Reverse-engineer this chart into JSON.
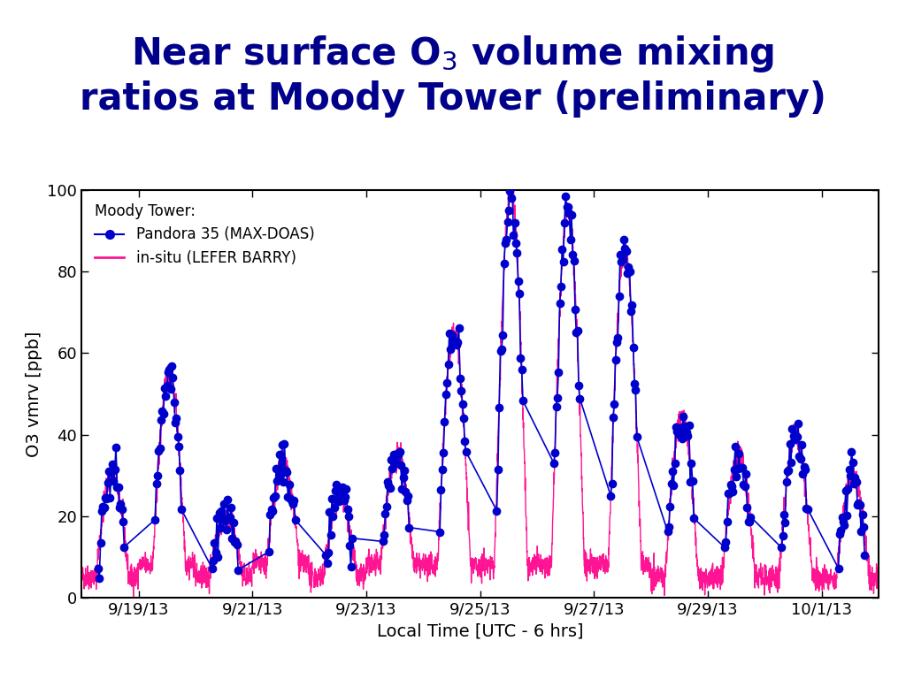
{
  "xlabel": "Local Time [UTC - 6 hrs]",
  "ylabel": "O3 vmrv [ppb]",
  "ylim": [
    0,
    100
  ],
  "yticks": [
    0,
    20,
    40,
    60,
    80,
    100
  ],
  "xtick_labels": [
    "9/19/13",
    "9/21/13",
    "9/23/13",
    "9/25/13",
    "9/27/13",
    "9/29/13",
    "10/1/13"
  ],
  "xtick_positions": [
    1,
    3,
    5,
    7,
    9,
    11,
    13
  ],
  "xlim": [
    0,
    14
  ],
  "legend_title": "Moody Tower:",
  "legend_pandora": "Pandora 35 (MAX-DOAS)",
  "legend_insitu": "in-situ (LEFER BARRY)",
  "blue_color": "#0000CD",
  "pink_color": "#FF1493",
  "background_color": "#FFFFFF",
  "title_color": "#00008B",
  "title_fontsize": 30,
  "axis_fontsize": 14,
  "tick_fontsize": 13,
  "day_amps": [
    [
      5,
      30
    ],
    [
      8,
      55
    ],
    [
      5,
      20
    ],
    [
      8,
      33
    ],
    [
      5,
      25
    ],
    [
      8,
      35
    ],
    [
      8,
      65
    ],
    [
      8,
      100
    ],
    [
      8,
      95
    ],
    [
      8,
      85
    ],
    [
      5,
      45
    ],
    [
      5,
      35
    ],
    [
      5,
      40
    ],
    [
      5,
      30
    ]
  ]
}
